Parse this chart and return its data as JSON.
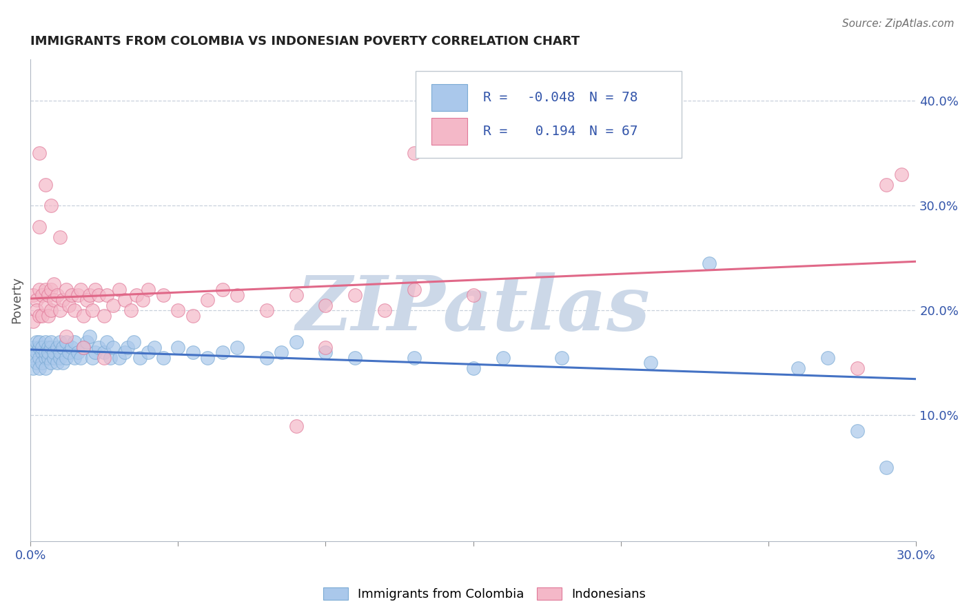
{
  "title": "IMMIGRANTS FROM COLOMBIA VS INDONESIAN POVERTY CORRELATION CHART",
  "source": "Source: ZipAtlas.com",
  "ylabel": "Poverty",
  "xlim": [
    0.0,
    0.3
  ],
  "ylim": [
    -0.02,
    0.44
  ],
  "yticks": [
    0.1,
    0.2,
    0.3,
    0.4
  ],
  "ytick_labels": [
    "10.0%",
    "20.0%",
    "30.0%",
    "40.0%"
  ],
  "xticks": [
    0.0,
    0.05,
    0.1,
    0.15,
    0.2,
    0.25,
    0.3
  ],
  "xtick_labels": [
    "0.0%",
    "",
    "",
    "",
    "",
    "",
    "30.0%"
  ],
  "series": [
    {
      "name": "Immigrants from Colombia",
      "color": "#aac8eb",
      "edge_color": "#7aaad4",
      "R": -0.048,
      "N": 78,
      "trend_color": "#4472c4",
      "x": [
        0.001,
        0.001,
        0.001,
        0.002,
        0.002,
        0.002,
        0.003,
        0.003,
        0.003,
        0.003,
        0.004,
        0.004,
        0.004,
        0.005,
        0.005,
        0.005,
        0.005,
        0.006,
        0.006,
        0.006,
        0.007,
        0.007,
        0.007,
        0.008,
        0.008,
        0.009,
        0.009,
        0.01,
        0.01,
        0.01,
        0.011,
        0.011,
        0.012,
        0.012,
        0.013,
        0.014,
        0.015,
        0.015,
        0.016,
        0.017,
        0.018,
        0.019,
        0.02,
        0.021,
        0.022,
        0.023,
        0.025,
        0.026,
        0.027,
        0.028,
        0.03,
        0.032,
        0.033,
        0.035,
        0.037,
        0.04,
        0.042,
        0.045,
        0.05,
        0.055,
        0.06,
        0.065,
        0.07,
        0.08,
        0.085,
        0.09,
        0.1,
        0.11,
        0.13,
        0.15,
        0.16,
        0.18,
        0.21,
        0.23,
        0.26,
        0.27,
        0.28,
        0.29
      ],
      "y": [
        0.165,
        0.155,
        0.145,
        0.16,
        0.17,
        0.15,
        0.155,
        0.165,
        0.145,
        0.17,
        0.16,
        0.15,
        0.165,
        0.155,
        0.16,
        0.17,
        0.145,
        0.165,
        0.155,
        0.16,
        0.15,
        0.165,
        0.17,
        0.155,
        0.16,
        0.165,
        0.15,
        0.17,
        0.155,
        0.16,
        0.165,
        0.15,
        0.155,
        0.17,
        0.16,
        0.165,
        0.155,
        0.17,
        0.16,
        0.155,
        0.165,
        0.17,
        0.175,
        0.155,
        0.16,
        0.165,
        0.16,
        0.17,
        0.155,
        0.165,
        0.155,
        0.16,
        0.165,
        0.17,
        0.155,
        0.16,
        0.165,
        0.155,
        0.165,
        0.16,
        0.155,
        0.16,
        0.165,
        0.155,
        0.16,
        0.17,
        0.16,
        0.155,
        0.155,
        0.145,
        0.155,
        0.155,
        0.15,
        0.245,
        0.145,
        0.155,
        0.085,
        0.05
      ]
    },
    {
      "name": "Indonesians",
      "color": "#f4b8c8",
      "edge_color": "#e07898",
      "R": 0.194,
      "N": 67,
      "trend_color": "#e06888",
      "x": [
        0.001,
        0.001,
        0.002,
        0.002,
        0.003,
        0.003,
        0.003,
        0.004,
        0.004,
        0.005,
        0.005,
        0.006,
        0.006,
        0.007,
        0.007,
        0.008,
        0.008,
        0.009,
        0.01,
        0.011,
        0.012,
        0.013,
        0.014,
        0.015,
        0.016,
        0.017,
        0.018,
        0.019,
        0.02,
        0.021,
        0.022,
        0.023,
        0.025,
        0.026,
        0.028,
        0.03,
        0.032,
        0.034,
        0.036,
        0.038,
        0.04,
        0.045,
        0.05,
        0.055,
        0.06,
        0.065,
        0.07,
        0.08,
        0.09,
        0.1,
        0.11,
        0.12,
        0.13,
        0.15,
        0.003,
        0.005,
        0.007,
        0.01,
        0.012,
        0.018,
        0.025,
        0.09,
        0.1,
        0.13,
        0.28,
        0.29,
        0.295
      ],
      "y": [
        0.215,
        0.19,
        0.21,
        0.2,
        0.195,
        0.22,
        0.35,
        0.195,
        0.215,
        0.205,
        0.22,
        0.195,
        0.215,
        0.2,
        0.22,
        0.21,
        0.225,
        0.215,
        0.2,
        0.21,
        0.22,
        0.205,
        0.215,
        0.2,
        0.215,
        0.22,
        0.195,
        0.21,
        0.215,
        0.2,
        0.22,
        0.215,
        0.195,
        0.215,
        0.205,
        0.22,
        0.21,
        0.2,
        0.215,
        0.21,
        0.22,
        0.215,
        0.2,
        0.195,
        0.21,
        0.22,
        0.215,
        0.2,
        0.215,
        0.205,
        0.215,
        0.2,
        0.22,
        0.215,
        0.28,
        0.32,
        0.3,
        0.27,
        0.175,
        0.165,
        0.155,
        0.09,
        0.165,
        0.35,
        0.145,
        0.32,
        0.33
      ]
    }
  ],
  "watermark": "ZIPatlas",
  "watermark_color": "#ccd8e8",
  "background_color": "#ffffff",
  "grid_color": "#c8d0dc",
  "title_color": "#222222",
  "axis_label_color": "#333355",
  "tick_color": "#3355aa",
  "legend_text_color": "#3355aa"
}
